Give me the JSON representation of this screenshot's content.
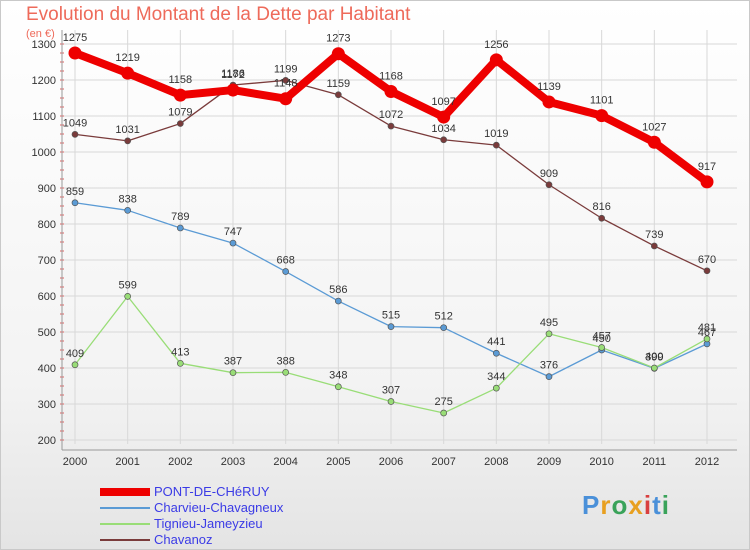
{
  "title": "Evolution du Montant de la Dette par Habitant",
  "subtitle": "(en €)",
  "logo": {
    "text": "Proxiti",
    "letter_colors": [
      "#4a90d9",
      "#e8a020",
      "#3aa35a",
      "#e8a020",
      "#d94040",
      "#4a90d9",
      "#3aa35a"
    ]
  },
  "chart_data": {
    "type": "line",
    "title": "Evolution du Montant de la Dette par Habitant",
    "ylabel": "(en €)",
    "xlabel": "",
    "x": [
      "2000",
      "2001",
      "2002",
      "2003",
      "2004",
      "2005",
      "2006",
      "2007",
      "2008",
      "2009",
      "2010",
      "2011",
      "2012"
    ],
    "ylim": [
      200,
      1300
    ],
    "yticks": [
      "200",
      "300",
      "400",
      "500",
      "600",
      "700",
      "800",
      "900",
      "1000",
      "1100",
      "1200",
      "1300"
    ],
    "grid": true,
    "legend_position": "bottom-left",
    "series": [
      {
        "name": "PONT-DE-CHéRUY",
        "color": "#ee0000",
        "values": [
          1275,
          1219,
          1158,
          1172,
          1148,
          1273,
          1168,
          1097,
          1256,
          1139,
          1101,
          1027,
          917
        ]
      },
      {
        "name": "Charvieu-Chavagneux",
        "color": "#5b9bd5",
        "values": [
          859,
          838,
          789,
          747,
          668,
          586,
          515,
          512,
          441,
          376,
          450,
          399,
          467
        ]
      },
      {
        "name": "Tignieu-Jameyzieu",
        "color": "#99dd77",
        "values": [
          409,
          599,
          413,
          387,
          388,
          348,
          307,
          275,
          344,
          495,
          457,
          400,
          481
        ]
      },
      {
        "name": "Chavanoz",
        "color": "#7a3b3b",
        "values": [
          1049,
          1031,
          1079,
          1186,
          1199,
          1159,
          1072,
          1034,
          1019,
          909,
          816,
          739,
          670
        ]
      }
    ]
  }
}
